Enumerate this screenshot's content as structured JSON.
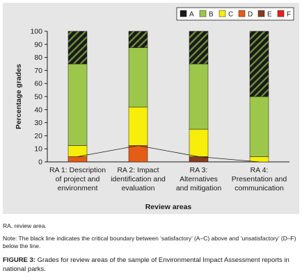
{
  "chart_data": {
    "type": "bar",
    "stacked": true,
    "categories": [
      [
        "RA 1: Description",
        "of project and",
        "environment"
      ],
      [
        "RA 2: Impact",
        "identification and",
        "evaluation"
      ],
      [
        "RA 3:",
        "Alternatives",
        "and mitigation"
      ],
      [
        "RA 4:",
        "Presentation and",
        "communication"
      ]
    ],
    "series": [
      {
        "name": "F",
        "color": "#ee1c1c",
        "values": [
          0,
          0,
          0,
          0
        ]
      },
      {
        "name": "E",
        "color": "#8b3a1e",
        "values": [
          0,
          0,
          4,
          0
        ]
      },
      {
        "name": "D",
        "color": "#e45c16",
        "values": [
          4,
          12.5,
          0,
          0
        ]
      },
      {
        "name": "C",
        "color": "#f7ee0a",
        "values": [
          8.5,
          29.5,
          21,
          4
        ]
      },
      {
        "name": "B",
        "color": "#9dc74a",
        "values": [
          62.5,
          45.5,
          50,
          46
        ]
      },
      {
        "name": "A",
        "color": "#1a1a1a",
        "values": [
          25,
          12.5,
          25,
          50
        ],
        "pattern": "diagonal-hatch"
      }
    ],
    "legend_order": [
      "A",
      "B",
      "C",
      "D",
      "E",
      "F"
    ],
    "legend_placement": "top-right",
    "critical_line": [
      4,
      12.5,
      4,
      0
    ],
    "xlabel": "Review areas",
    "ylabel": "Percentage grades",
    "ylim": [
      0,
      100
    ],
    "yticks": [
      "0",
      "10",
      "20",
      "30",
      "40",
      "50",
      "60",
      "70",
      "80",
      "90",
      "100"
    ],
    "grid": false
  },
  "captions": {
    "abbreviation": "RA, review area.",
    "note": "Note: The black line indicates the critical boundary between ‘satisfactory’ (A–C) above and ‘unsatisfactory’ (D–F) below the line.",
    "figure_label": "FIGURE 3:",
    "figure_text": " Grades for review areas of the sample of Environmental Impact Assessment reports in national parks."
  }
}
